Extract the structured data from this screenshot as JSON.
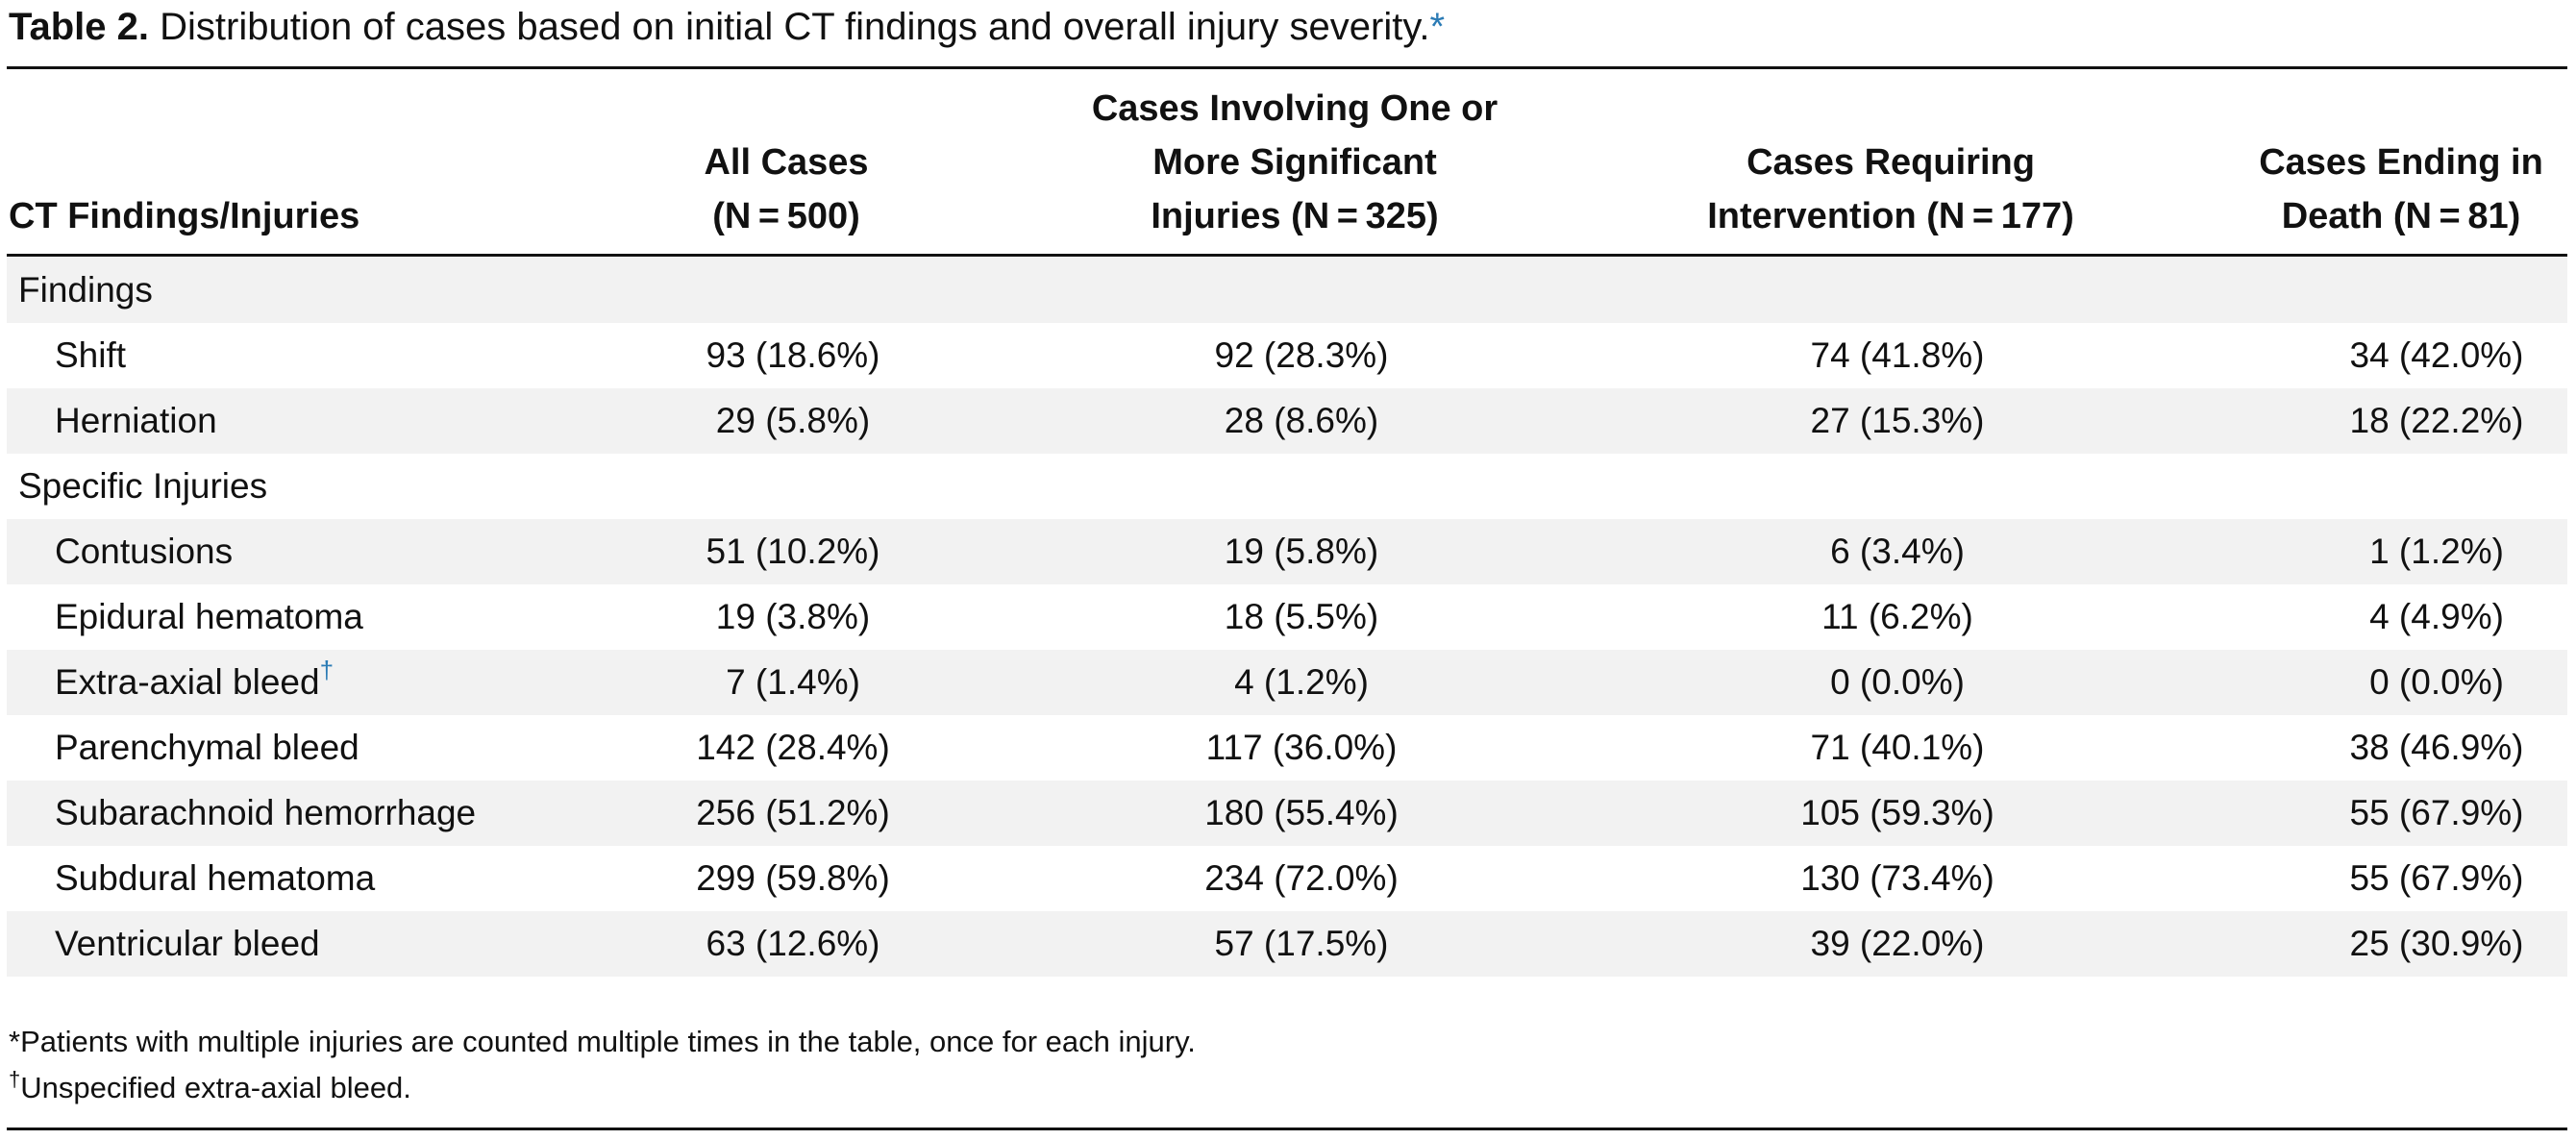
{
  "title": {
    "label": "Table 2.",
    "text": "Distribution of cases based on initial CT findings and overall injury severity.",
    "marker": "*"
  },
  "headers": [
    {
      "lines": [
        "CT Findings/Injuries"
      ]
    },
    {
      "lines": [
        "All Cases",
        "(N = 500)"
      ]
    },
    {
      "lines": [
        "Cases Involving One or",
        "More Significant",
        "Injuries (N = 325)"
      ]
    },
    {
      "lines": [
        "Cases Requiring",
        "Intervention (N = 177)"
      ]
    },
    {
      "lines": [
        "Cases Ending in",
        "Death (N = 81)"
      ]
    }
  ],
  "rows": [
    {
      "section": true,
      "label": "Findings"
    },
    {
      "label": "Shift",
      "values": [
        "93 (18.6%)",
        "92 (28.3%)",
        "74 (41.8%)",
        "34 (42.0%)"
      ]
    },
    {
      "label": "Herniation",
      "values": [
        "29 (5.8%)",
        "28 (8.6%)",
        "27 (15.3%)",
        "18 (22.2%)"
      ]
    },
    {
      "section": true,
      "label": "Specific Injuries"
    },
    {
      "label": "Contusions",
      "values": [
        "51 (10.2%)",
        "19 (5.8%)",
        "6 (3.4%)",
        "1 (1.2%)"
      ]
    },
    {
      "label": "Epidural hematoma",
      "values": [
        "19 (3.8%)",
        "18 (5.5%)",
        "11 (6.2%)",
        "4 (4.9%)"
      ]
    },
    {
      "label": "Extra-axial bleed",
      "marker": "†",
      "values": [
        "7 (1.4%)",
        "4 (1.2%)",
        "0 (0.0%)",
        "0 (0.0%)"
      ]
    },
    {
      "label": "Parenchymal bleed",
      "values": [
        "142 (28.4%)",
        "117 (36.0%)",
        "71 (40.1%)",
        "38 (46.9%)"
      ]
    },
    {
      "label": "Subarachnoid hemorrhage",
      "values": [
        "256 (51.2%)",
        "180 (55.4%)",
        "105 (59.3%)",
        "55 (67.9%)"
      ]
    },
    {
      "label": "Subdural hematoma",
      "values": [
        "299 (59.8%)",
        "234 (72.0%)",
        "130 (73.4%)",
        "55 (67.9%)"
      ]
    },
    {
      "label": "Ventricular bleed",
      "values": [
        "63 (12.6%)",
        "57 (17.5%)",
        "39 (22.0%)",
        "25 (30.9%)"
      ]
    }
  ],
  "footnotes": [
    {
      "marker": "",
      "text": "*Patients with multiple injuries are counted multiple times in the table, once for each injury."
    },
    {
      "marker": "†",
      "text": "Unspecified extra-axial bleed."
    }
  ],
  "colors": {
    "accent": "#2b7bb5",
    "shade": "#f2f2f2",
    "rule": "#111111"
  }
}
